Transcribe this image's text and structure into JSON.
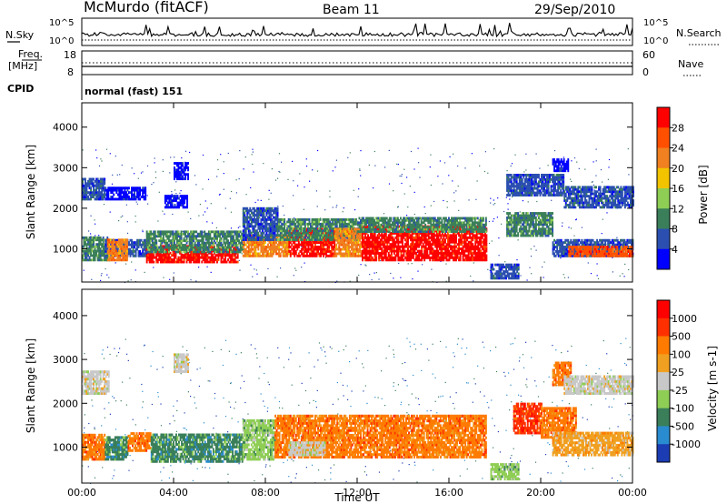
{
  "header": {
    "station": "McMurdo (fitACF)",
    "beam": "Beam 11",
    "date": "29/Sep/2010"
  },
  "top_panels": {
    "nsky_label": "N.Sky",
    "nsearch_label": "N.Search",
    "nsky_ticks": [
      "10^5",
      "10^0"
    ],
    "nsearch_ticks": [
      "10^5",
      "10^0"
    ],
    "freq_label": "Freq.",
    "freq_unit": "[MHz]",
    "freq_ticks": [
      "18",
      "8"
    ],
    "nave_label": "Nave",
    "nave_ticks": [
      "60",
      "0"
    ],
    "cpid_label": "CPID",
    "cpid_value": "normal (fast) 151"
  },
  "colors": {
    "power_scale": [
      "#0000ff",
      "#2b4fb0",
      "#3a7f5a",
      "#8fce55",
      "#f2c400",
      "#f08020",
      "#ff5000",
      "#ff0000"
    ],
    "velocity_scale": [
      "#1c3cb4",
      "#2a8cd0",
      "#3a7f5a",
      "#8fce55",
      "#c8c8c8",
      "#f0a020",
      "#ff7a00",
      "#ff3000",
      "#ff0000"
    ]
  },
  "chart_data": [
    {
      "type": "heatmap",
      "name": "power",
      "ylabel": "Slant Range [km]",
      "ylim": [
        180,
        4600
      ],
      "y_ticks": [
        "1000",
        "2000",
        "3000",
        "4000"
      ],
      "y_tick_values": [
        1000,
        2000,
        3000,
        4000
      ],
      "x_ticks": [
        "00:00",
        "04:00",
        "08:00",
        "12:00",
        "16:00",
        "20:00",
        "00:00"
      ],
      "x_tick_hours": [
        0,
        4,
        8,
        12,
        16,
        20,
        24
      ],
      "colorbar_label": "Power [dB]",
      "colorbar_ticks": [
        "28",
        "24",
        "20",
        "16",
        "12",
        "8",
        "4"
      ],
      "bands": [
        {
          "h0": 0.0,
          "h1": 1.1,
          "r0": 700,
          "r1": 1300,
          "lvl": 2
        },
        {
          "h0": 0.0,
          "h1": 1.0,
          "r0": 2200,
          "r1": 2700,
          "lvl": 1
        },
        {
          "h0": 1.0,
          "h1": 3.0,
          "r0": 800,
          "r1": 1200,
          "lvl": 1
        },
        {
          "h0": 1.0,
          "h1": 2.8,
          "r0": 2200,
          "r1": 2500,
          "lvl": 0
        },
        {
          "h0": 1.1,
          "h1": 2.0,
          "r0": 700,
          "r1": 1200,
          "lvl": 5
        },
        {
          "h0": 2.8,
          "h1": 6.8,
          "r0": 650,
          "r1": 1050,
          "lvl": 7
        },
        {
          "h0": 2.8,
          "h1": 7.0,
          "r0": 900,
          "r1": 1400,
          "lvl": 2
        },
        {
          "h0": 4.0,
          "h1": 4.6,
          "r0": 2700,
          "r1": 3100,
          "lvl": 0
        },
        {
          "h0": 3.6,
          "h1": 4.6,
          "r0": 2000,
          "r1": 2300,
          "lvl": 0
        },
        {
          "h0": 7.0,
          "h1": 9.0,
          "r0": 800,
          "r1": 1350,
          "lvl": 5
        },
        {
          "h0": 7.0,
          "h1": 8.5,
          "r0": 1200,
          "r1": 2000,
          "lvl": 1
        },
        {
          "h0": 9.0,
          "h1": 11.0,
          "r0": 800,
          "r1": 1500,
          "lvl": 7
        },
        {
          "h0": 8.5,
          "h1": 12.0,
          "r0": 1200,
          "r1": 1700,
          "lvl": 2
        },
        {
          "h0": 11.0,
          "h1": 12.2,
          "r0": 800,
          "r1": 1500,
          "lvl": 5
        },
        {
          "h0": 12.2,
          "h1": 17.6,
          "r0": 700,
          "r1": 1550,
          "lvl": 7
        },
        {
          "h0": 12.0,
          "h1": 17.6,
          "r0": 1400,
          "r1": 1750,
          "lvl": 2
        },
        {
          "h0": 17.8,
          "h1": 19.0,
          "r0": 250,
          "r1": 600,
          "lvl": 1
        },
        {
          "h0": 18.5,
          "h1": 20.5,
          "r0": 1300,
          "r1": 1900,
          "lvl": 2
        },
        {
          "h0": 18.5,
          "h1": 21.0,
          "r0": 2300,
          "r1": 2800,
          "lvl": 1
        },
        {
          "h0": 20.5,
          "h1": 21.2,
          "r0": 2900,
          "r1": 3200,
          "lvl": 0
        },
        {
          "h0": 20.5,
          "h1": 24.0,
          "r0": 800,
          "r1": 1200,
          "lvl": 1
        },
        {
          "h0": 21.2,
          "h1": 24.0,
          "r0": 800,
          "r1": 1050,
          "lvl": 6
        },
        {
          "h0": 21.0,
          "h1": 24.0,
          "r0": 2000,
          "r1": 2500,
          "lvl": 1
        }
      ]
    },
    {
      "type": "heatmap",
      "name": "velocity",
      "ylabel": "Slant Range [km]",
      "ylim": [
        180,
        4600
      ],
      "y_ticks": [
        "1000",
        "2000",
        "3000",
        "4000"
      ],
      "y_tick_values": [
        1000,
        2000,
        3000,
        4000
      ],
      "x_ticks": [
        "00:00",
        "04:00",
        "08:00",
        "12:00",
        "16:00",
        "20:00",
        "00:00"
      ],
      "x_tick_hours": [
        0,
        4,
        8,
        12,
        16,
        20,
        24
      ],
      "xlabel": "Time UT",
      "colorbar_label": "Velocity [m s-1]",
      "colorbar_ticks": [
        "1000",
        "500",
        "100",
        "25",
        "-25",
        "-100",
        "-500",
        "-1000"
      ],
      "bands": [
        {
          "h0": 0.0,
          "h1": 1.0,
          "r0": 700,
          "r1": 1300,
          "lvl": 6
        },
        {
          "h0": 0.0,
          "h1": 1.2,
          "r0": 2200,
          "r1": 2700,
          "lvl": 4
        },
        {
          "h0": 1.0,
          "h1": 2.0,
          "r0": 700,
          "r1": 1200,
          "lvl": 2
        },
        {
          "h0": 2.0,
          "h1": 3.0,
          "r0": 900,
          "r1": 1300,
          "lvl": 6
        },
        {
          "h0": 3.0,
          "h1": 7.0,
          "r0": 650,
          "r1": 1300,
          "lvl": 2
        },
        {
          "h0": 4.0,
          "h1": 4.6,
          "r0": 2700,
          "r1": 3100,
          "lvl": 4
        },
        {
          "h0": 7.0,
          "h1": 8.4,
          "r0": 700,
          "r1": 1600,
          "lvl": 3
        },
        {
          "h0": 8.4,
          "h1": 17.6,
          "r0": 750,
          "r1": 1700,
          "lvl": 6
        },
        {
          "h0": 9.0,
          "h1": 10.6,
          "r0": 800,
          "r1": 1100,
          "lvl": 4
        },
        {
          "h0": 17.8,
          "h1": 19.0,
          "r0": 250,
          "r1": 600,
          "lvl": 3
        },
        {
          "h0": 18.8,
          "h1": 20.0,
          "r0": 1300,
          "r1": 2000,
          "lvl": 7
        },
        {
          "h0": 20.0,
          "h1": 21.5,
          "r0": 1200,
          "r1": 1900,
          "lvl": 6
        },
        {
          "h0": 20.5,
          "h1": 21.3,
          "r0": 2400,
          "r1": 2900,
          "lvl": 6
        },
        {
          "h0": 21.0,
          "h1": 24.0,
          "r0": 2200,
          "r1": 2600,
          "lvl": 4
        },
        {
          "h0": 20.5,
          "h1": 24.0,
          "r0": 800,
          "r1": 1300,
          "lvl": 5
        }
      ]
    }
  ]
}
